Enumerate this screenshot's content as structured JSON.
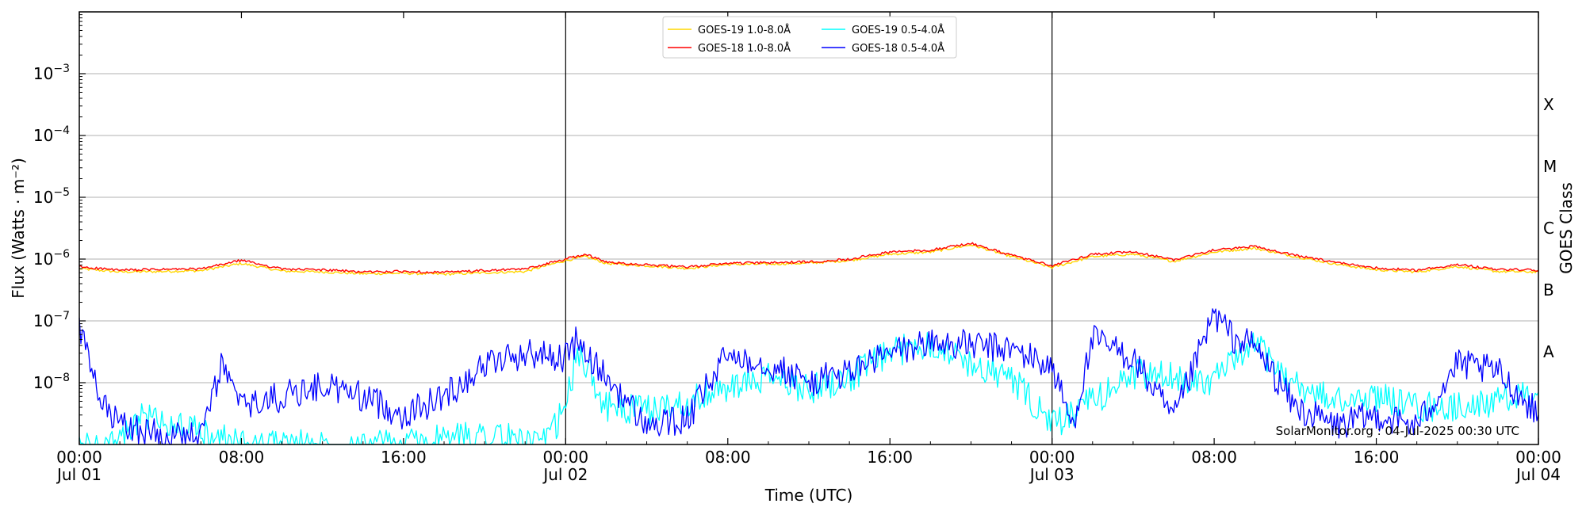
{
  "chart_data": {
    "type": "line",
    "title": "",
    "xlabel": "Time (UTC)",
    "ylabel": "Flux (Watts · m⁻²)",
    "y2label": "GOES Class",
    "y_scale": "log",
    "ylim": [
      1e-09,
      0.01
    ],
    "xlim": [
      "2025-07-01 00:00",
      "2025-07-04 00:00"
    ],
    "grid": "horizontal at decades",
    "legend_position": "top-center",
    "x_ticks": [
      {
        "time": "2025-07-01 00:00",
        "line1": "00:00",
        "line2": "Jul 01"
      },
      {
        "time": "2025-07-01 08:00",
        "line1": "08:00",
        "line2": ""
      },
      {
        "time": "2025-07-01 16:00",
        "line1": "16:00",
        "line2": ""
      },
      {
        "time": "2025-07-02 00:00",
        "line1": "00:00",
        "line2": "Jul 02"
      },
      {
        "time": "2025-07-02 08:00",
        "line1": "08:00",
        "line2": ""
      },
      {
        "time": "2025-07-02 16:00",
        "line1": "16:00",
        "line2": ""
      },
      {
        "time": "2025-07-03 00:00",
        "line1": "00:00",
        "line2": "Jul 03"
      },
      {
        "time": "2025-07-03 08:00",
        "line1": "08:00",
        "line2": ""
      },
      {
        "time": "2025-07-03 16:00",
        "line1": "16:00",
        "line2": ""
      },
      {
        "time": "2025-07-04 00:00",
        "line1": "00:00",
        "line2": "Jul 04"
      }
    ],
    "day_boundaries": [
      "2025-07-02 00:00",
      "2025-07-03 00:00"
    ],
    "y_ticks": [
      {
        "value": 1e-08,
        "mantissa": "10",
        "exp": "−8"
      },
      {
        "value": 1e-07,
        "mantissa": "10",
        "exp": "−7"
      },
      {
        "value": 1e-06,
        "mantissa": "10",
        "exp": "−6"
      },
      {
        "value": 1e-05,
        "mantissa": "10",
        "exp": "−5"
      },
      {
        "value": 0.0001,
        "mantissa": "10",
        "exp": "−4"
      },
      {
        "value": 0.001,
        "mantissa": "10",
        "exp": "−3"
      }
    ],
    "goes_classes": [
      {
        "label": "A",
        "value": 3.16e-08
      },
      {
        "label": "B",
        "value": 3.16e-07
      },
      {
        "label": "C",
        "value": 3.16e-06
      },
      {
        "label": "M",
        "value": 3.16e-05
      },
      {
        "label": "X",
        "value": 0.000316
      }
    ],
    "series": [
      {
        "name": "GOES-19 1.0-8.0Å",
        "color": "#ffd700",
        "points": [
          [
            "2025-07-01 00:00",
            7e-07
          ],
          [
            "2025-07-01 02:00",
            6.2e-07
          ],
          [
            "2025-07-01 04:00",
            6.3e-07
          ],
          [
            "2025-07-01 06:00",
            6.5e-07
          ],
          [
            "2025-07-01 08:00",
            8.5e-07
          ],
          [
            "2025-07-01 10:00",
            6.4e-07
          ],
          [
            "2025-07-01 12:00",
            6.2e-07
          ],
          [
            "2025-07-01 14:00",
            5.8e-07
          ],
          [
            "2025-07-01 16:00",
            5.9e-07
          ],
          [
            "2025-07-01 18:00",
            5.7e-07
          ],
          [
            "2025-07-01 20:00",
            6e-07
          ],
          [
            "2025-07-01 22:00",
            6.3e-07
          ],
          [
            "2025-07-02 00:00",
            9.5e-07
          ],
          [
            "2025-07-02 01:00",
            1.1e-06
          ],
          [
            "2025-07-02 02:00",
            8.5e-07
          ],
          [
            "2025-07-02 04:00",
            7.8e-07
          ],
          [
            "2025-07-02 06:00",
            7.1e-07
          ],
          [
            "2025-07-02 08:00",
            8.2e-07
          ],
          [
            "2025-07-02 10:00",
            8.3e-07
          ],
          [
            "2025-07-02 12:00",
            8.6e-07
          ],
          [
            "2025-07-02 14:00",
            9.5e-07
          ],
          [
            "2025-07-02 16:00",
            1.2e-06
          ],
          [
            "2025-07-02 18:00",
            1.3e-06
          ],
          [
            "2025-07-02 20:00",
            1.7e-06
          ],
          [
            "2025-07-02 22:00",
            1.1e-06
          ],
          [
            "2025-07-03 00:00",
            7.3e-07
          ],
          [
            "2025-07-03 02:00",
            1.1e-06
          ],
          [
            "2025-07-03 04:00",
            1.2e-06
          ],
          [
            "2025-07-03 06:00",
            9.2e-07
          ],
          [
            "2025-07-03 08:00",
            1.3e-06
          ],
          [
            "2025-07-03 10:00",
            1.5e-06
          ],
          [
            "2025-07-03 12:00",
            1.1e-06
          ],
          [
            "2025-07-03 14:00",
            8.3e-07
          ],
          [
            "2025-07-03 16:00",
            6.7e-07
          ],
          [
            "2025-07-03 18:00",
            6.2e-07
          ],
          [
            "2025-07-03 20:00",
            7.6e-07
          ],
          [
            "2025-07-03 22:00",
            6.3e-07
          ],
          [
            "2025-07-04 00:00",
            6.2e-07
          ]
        ]
      },
      {
        "name": "GOES-18 1.0-8.0Å",
        "color": "#ff0000",
        "points": [
          [
            "2025-07-01 00:00",
            7.5e-07
          ],
          [
            "2025-07-01 02:00",
            6.6e-07
          ],
          [
            "2025-07-01 04:00",
            6.8e-07
          ],
          [
            "2025-07-01 06:00",
            6.9e-07
          ],
          [
            "2025-07-01 08:00",
            9.6e-07
          ],
          [
            "2025-07-01 10:00",
            6.9e-07
          ],
          [
            "2025-07-01 12:00",
            6.7e-07
          ],
          [
            "2025-07-01 14:00",
            6.2e-07
          ],
          [
            "2025-07-01 16:00",
            6.3e-07
          ],
          [
            "2025-07-01 18:00",
            6.1e-07
          ],
          [
            "2025-07-01 20:00",
            6.5e-07
          ],
          [
            "2025-07-01 22:00",
            6.9e-07
          ],
          [
            "2025-07-02 00:00",
            1e-06
          ],
          [
            "2025-07-02 01:00",
            1.2e-06
          ],
          [
            "2025-07-02 02:00",
            8.9e-07
          ],
          [
            "2025-07-02 04:00",
            8.1e-07
          ],
          [
            "2025-07-02 06:00",
            7.4e-07
          ],
          [
            "2025-07-02 08:00",
            8.6e-07
          ],
          [
            "2025-07-02 10:00",
            8.7e-07
          ],
          [
            "2025-07-02 12:00",
            9e-07
          ],
          [
            "2025-07-02 14:00",
            1e-06
          ],
          [
            "2025-07-02 16:00",
            1.3e-06
          ],
          [
            "2025-07-02 18:00",
            1.4e-06
          ],
          [
            "2025-07-02 20:00",
            1.8e-06
          ],
          [
            "2025-07-02 22:00",
            1.15e-06
          ],
          [
            "2025-07-03 00:00",
            7.8e-07
          ],
          [
            "2025-07-03 02:00",
            1.2e-06
          ],
          [
            "2025-07-03 04:00",
            1.3e-06
          ],
          [
            "2025-07-03 06:00",
            9.8e-07
          ],
          [
            "2025-07-03 08:00",
            1.4e-06
          ],
          [
            "2025-07-03 10:00",
            1.6e-06
          ],
          [
            "2025-07-03 12:00",
            1.15e-06
          ],
          [
            "2025-07-03 14:00",
            8.8e-07
          ],
          [
            "2025-07-03 16:00",
            7.2e-07
          ],
          [
            "2025-07-03 18:00",
            6.6e-07
          ],
          [
            "2025-07-03 20:00",
            8.2e-07
          ],
          [
            "2025-07-03 22:00",
            6.8e-07
          ],
          [
            "2025-07-04 00:00",
            6.6e-07
          ]
        ]
      },
      {
        "name": "GOES-19 0.5-4.0Å",
        "color": "#00ffff",
        "points": [
          [
            "2025-07-01 00:00",
            1e-09
          ],
          [
            "2025-07-01 02:00",
            1e-09
          ],
          [
            "2025-07-01 03:00",
            3e-09
          ],
          [
            "2025-07-01 05:00",
            2e-09
          ],
          [
            "2025-07-01 06:00",
            1.5e-09
          ],
          [
            "2025-07-01 08:00",
            1e-09
          ],
          [
            "2025-07-01 10:00",
            1e-09
          ],
          [
            "2025-07-01 16:00",
            1e-09
          ],
          [
            "2025-07-01 20:00",
            1.5e-09
          ],
          [
            "2025-07-01 23:00",
            1e-09
          ],
          [
            "2025-07-02 00:00",
            4e-09
          ],
          [
            "2025-07-02 00:30",
            2.5e-08
          ],
          [
            "2025-07-02 01:00",
            2e-08
          ],
          [
            "2025-07-02 02:00",
            4e-09
          ],
          [
            "2025-07-02 04:00",
            3.5e-09
          ],
          [
            "2025-07-02 06:00",
            5e-09
          ],
          [
            "2025-07-02 08:00",
            8e-09
          ],
          [
            "2025-07-02 10:00",
            1.2e-08
          ],
          [
            "2025-07-02 12:00",
            8e-09
          ],
          [
            "2025-07-02 14:00",
            1.2e-08
          ],
          [
            "2025-07-02 16:00",
            3e-08
          ],
          [
            "2025-07-02 18:00",
            4.5e-08
          ],
          [
            "2025-07-02 20:00",
            2e-08
          ],
          [
            "2025-07-02 22:00",
            1.2e-08
          ],
          [
            "2025-07-03 00:00",
            2e-09
          ],
          [
            "2025-07-03 02:00",
            5e-09
          ],
          [
            "2025-07-03 04:00",
            1.4e-08
          ],
          [
            "2025-07-03 06:00",
            1.2e-08
          ],
          [
            "2025-07-03 08:00",
            1.1e-08
          ],
          [
            "2025-07-03 10:00",
            4.2e-08
          ],
          [
            "2025-07-03 12:00",
            9e-09
          ],
          [
            "2025-07-03 14:00",
            5e-09
          ],
          [
            "2025-07-03 16:00",
            6e-09
          ],
          [
            "2025-07-03 18:00",
            4e-09
          ],
          [
            "2025-07-03 20:00",
            4e-09
          ],
          [
            "2025-07-03 22:00",
            5e-09
          ],
          [
            "2025-07-04 00:00",
            7e-09
          ]
        ]
      },
      {
        "name": "GOES-18 0.5-4.0Å",
        "color": "#0000ff",
        "points": [
          [
            "2025-07-01 00:00",
            8e-08
          ],
          [
            "2025-07-01 01:00",
            5e-09
          ],
          [
            "2025-07-01 02:00",
            2e-09
          ],
          [
            "2025-07-01 04:00",
            1.5e-09
          ],
          [
            "2025-07-01 06:00",
            1.2e-09
          ],
          [
            "2025-07-01 07:00",
            2e-08
          ],
          [
            "2025-07-01 08:00",
            4e-09
          ],
          [
            "2025-07-01 10:00",
            6e-09
          ],
          [
            "2025-07-01 12:00",
            9e-09
          ],
          [
            "2025-07-01 14:00",
            6e-09
          ],
          [
            "2025-07-01 16:00",
            3e-09
          ],
          [
            "2025-07-01 18:00",
            6e-09
          ],
          [
            "2025-07-01 20:00",
            2e-08
          ],
          [
            "2025-07-01 22:00",
            3e-08
          ],
          [
            "2025-07-02 00:00",
            2.6e-08
          ],
          [
            "2025-07-02 00:30",
            4.5e-08
          ],
          [
            "2025-07-02 02:00",
            1.2e-08
          ],
          [
            "2025-07-02 04:00",
            2e-09
          ],
          [
            "2025-07-02 06:00",
            2.5e-09
          ],
          [
            "2025-07-02 08:00",
            3e-08
          ],
          [
            "2025-07-02 10:00",
            2e-08
          ],
          [
            "2025-07-02 12:00",
            1e-08
          ],
          [
            "2025-07-02 14:00",
            1.5e-08
          ],
          [
            "2025-07-02 16:00",
            3e-08
          ],
          [
            "2025-07-02 18:00",
            4.5e-08
          ],
          [
            "2025-07-02 20:00",
            4e-08
          ],
          [
            "2025-07-02 22:00",
            3.5e-08
          ],
          [
            "2025-07-03 00:00",
            1.8e-08
          ],
          [
            "2025-07-03 01:00",
            2e-09
          ],
          [
            "2025-07-03 02:00",
            5e-08
          ],
          [
            "2025-07-03 04:00",
            2.5e-08
          ],
          [
            "2025-07-03 06:00",
            2.5e-09
          ],
          [
            "2025-07-03 08:00",
            1.3e-07
          ],
          [
            "2025-07-03 09:00",
            5e-08
          ],
          [
            "2025-07-03 10:00",
            4e-08
          ],
          [
            "2025-07-03 12:00",
            4e-09
          ],
          [
            "2025-07-03 14:00",
            2e-09
          ],
          [
            "2025-07-03 16:00",
            3e-09
          ],
          [
            "2025-07-03 18:00",
            2e-09
          ],
          [
            "2025-07-03 20:00",
            2e-08
          ],
          [
            "2025-07-03 22:00",
            1.5e-08
          ],
          [
            "2025-07-04 00:00",
            3e-09
          ]
        ]
      }
    ],
    "credit": "SolarMonitor.org : 04-Jul-2025 00:30 UTC"
  }
}
